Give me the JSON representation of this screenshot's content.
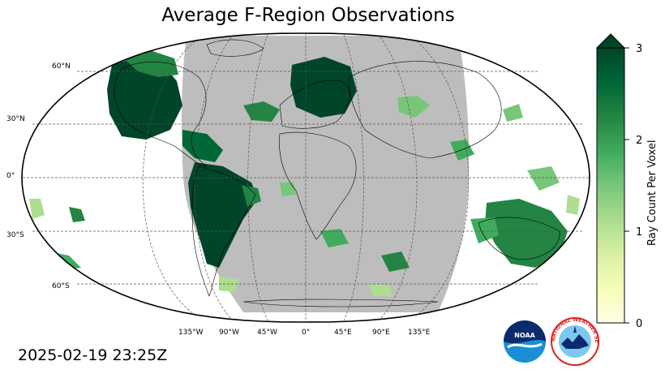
{
  "title": "Average F-Region Observations",
  "timestamp": "2025-02-19 23:25Z",
  "map": {
    "projection": "robinson",
    "night_shade_color": "#bdbdbd",
    "lat_labels": [
      "60°N",
      "30°N",
      "0°",
      "30°S",
      "60°S"
    ],
    "lon_labels": [
      "135°W",
      "90°W",
      "45°W",
      "0°",
      "45°E",
      "90°E",
      "135°E"
    ]
  },
  "colorbar": {
    "label": "Ray Count Per Voxel",
    "ticks": [
      "0",
      "1",
      "2",
      "3"
    ],
    "range": [
      0,
      3
    ],
    "extend": "max",
    "colors": [
      "#ffffe5",
      "#f7fcb9",
      "#d9f0a3",
      "#addd8e",
      "#78c679",
      "#41ab5d",
      "#238443",
      "#006837",
      "#004529"
    ]
  },
  "logos": {
    "noaa_text": "NOAA",
    "nws_text": "NATIONAL WEATHER SERVICE"
  }
}
